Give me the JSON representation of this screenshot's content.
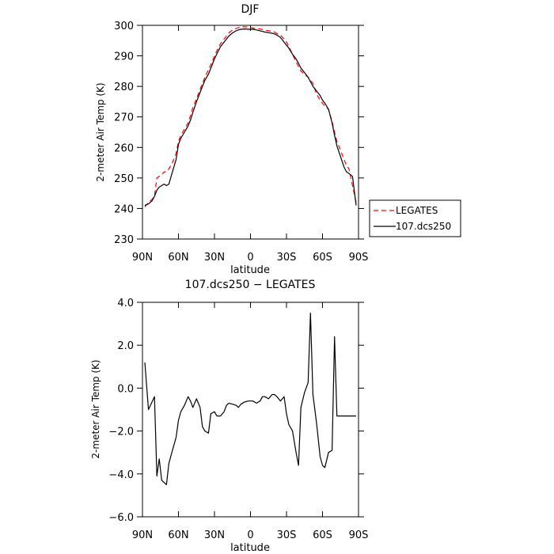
{
  "chart_data": [
    {
      "type": "line",
      "title": "DJF",
      "xlabel": "latitude",
      "ylabel": "2-meter Air Temp (K)",
      "xlim": [
        90,
        -90
      ],
      "ylim": [
        230,
        300
      ],
      "x_ticks": [
        90,
        60,
        30,
        0,
        -30,
        -60,
        -90
      ],
      "x_tick_labels": [
        "90N",
        "60N",
        "30N",
        "0",
        "30S",
        "60S",
        "90S"
      ],
      "y_ticks": [
        230,
        240,
        250,
        260,
        270,
        280,
        290,
        300
      ],
      "y_tick_labels": [
        "230",
        "240",
        "250",
        "260",
        "270",
        "280",
        "290",
        "300"
      ],
      "grid": false,
      "legend": {
        "placement": "outside-right",
        "entries": [
          {
            "label": "LEGATES",
            "color": "#ff0000",
            "dash": "dashed"
          },
          {
            "label": "107.dcs250",
            "color": "#000000",
            "dash": "solid"
          }
        ]
      },
      "series": [
        {
          "name": "LEGATES",
          "color": "#ff0000",
          "dash": "dashed",
          "x": [
            88,
            85,
            82,
            80,
            78,
            76,
            74,
            72,
            70,
            68,
            65,
            62,
            60,
            58,
            55,
            52,
            50,
            48,
            45,
            42,
            40,
            38,
            35,
            32,
            30,
            27,
            25,
            22,
            20,
            18,
            15,
            12,
            10,
            8,
            5,
            2,
            0,
            -2,
            -5,
            -8,
            -10,
            -12,
            -15,
            -18,
            -20,
            -22,
            -25,
            -28,
            -30,
            -32,
            -35,
            -38,
            -40,
            -42,
            -45,
            -48,
            -50,
            -52,
            -55,
            -58,
            -60,
            -62,
            -65,
            -68,
            -70,
            -72,
            -75,
            -78,
            -80,
            -82,
            -85,
            -88
          ],
          "y": [
            240.5,
            242.0,
            243.0,
            244.0,
            250.0,
            250.5,
            251.0,
            252.0,
            252.0,
            253.0,
            255.0,
            258.0,
            262.0,
            264.0,
            266.0,
            268.0,
            270.5,
            273.0,
            276.0,
            279.0,
            281.0,
            283.0,
            285.5,
            288.0,
            290.0,
            292.5,
            294.0,
            295.5,
            296.5,
            297.5,
            298.5,
            299.0,
            299.2,
            299.5,
            299.5,
            299.4,
            299.3,
            299.1,
            299.0,
            298.8,
            298.6,
            298.4,
            298.2,
            298.0,
            297.8,
            297.3,
            296.8,
            295.5,
            294.5,
            293.0,
            290.5,
            288.0,
            286.5,
            285.0,
            284.0,
            283.0,
            282.0,
            281.0,
            277.5,
            275.5,
            274.5,
            273.5,
            272.5,
            268.5,
            265.0,
            262.0,
            259.0,
            256.0,
            254.0,
            253.0,
            247.5,
            242.0
          ]
        },
        {
          "name": "107.dcs250",
          "color": "#000000",
          "dash": "solid",
          "x": [
            88,
            85,
            82,
            80,
            78,
            76,
            74,
            72,
            70,
            68,
            65,
            62,
            60,
            58,
            55,
            52,
            50,
            48,
            45,
            42,
            40,
            38,
            35,
            32,
            30,
            27,
            25,
            22,
            20,
            18,
            15,
            12,
            10,
            8,
            5,
            2,
            0,
            -2,
            -5,
            -8,
            -10,
            -12,
            -15,
            -18,
            -20,
            -22,
            -25,
            -28,
            -30,
            -32,
            -35,
            -38,
            -40,
            -42,
            -45,
            -48,
            -50,
            -52,
            -55,
            -58,
            -60,
            -62,
            -65,
            -68,
            -70,
            -72,
            -75,
            -78,
            -80,
            -82,
            -85,
            -88
          ],
          "y": [
            241.0,
            241.5,
            242.5,
            244.0,
            246.0,
            247.0,
            247.5,
            248.0,
            247.5,
            248.0,
            252.0,
            256.0,
            261.0,
            263.0,
            265.0,
            267.0,
            269.0,
            271.5,
            275.0,
            278.0,
            280.0,
            282.0,
            284.0,
            287.0,
            289.0,
            291.5,
            293.0,
            294.5,
            295.5,
            296.5,
            297.5,
            298.2,
            298.5,
            298.7,
            298.8,
            298.7,
            298.7,
            298.7,
            298.5,
            298.2,
            298.0,
            297.8,
            297.6,
            297.4,
            297.2,
            296.8,
            296.0,
            294.5,
            293.5,
            292.5,
            290.5,
            289.0,
            287.5,
            286.0,
            284.5,
            283.0,
            281.5,
            280.0,
            278.5,
            277.0,
            275.5,
            274.5,
            272.5,
            268.0,
            264.0,
            260.5,
            257.0,
            253.5,
            252.0,
            251.5,
            250.5,
            241.0
          ]
        }
      ]
    },
    {
      "type": "line",
      "title": "107.dcs250 − LEGATES",
      "xlabel": "latitude",
      "ylabel": "2-meter Air Temp (K)",
      "xlim": [
        90,
        -90
      ],
      "ylim": [
        -6,
        4
      ],
      "x_ticks": [
        90,
        60,
        30,
        0,
        -30,
        -60,
        -90
      ],
      "x_tick_labels": [
        "90N",
        "60N",
        "30N",
        "0",
        "30S",
        "60S",
        "90S"
      ],
      "y_ticks": [
        -6,
        -4,
        -2,
        0,
        2,
        4
      ],
      "y_tick_labels": [
        "−6.0",
        "−4.0",
        "−2.0",
        "0.0",
        "2.0",
        "4.0"
      ],
      "grid": false,
      "series": [
        {
          "color": "#000000",
          "dash": "solid",
          "x": [
            88,
            85,
            80,
            78,
            76,
            74,
            72,
            70,
            68,
            65,
            62,
            60,
            58,
            55,
            52,
            50,
            48,
            45,
            42,
            40,
            38,
            35,
            33,
            30,
            28,
            25,
            22,
            20,
            18,
            15,
            12,
            10,
            8,
            5,
            2,
            0,
            -2,
            -5,
            -8,
            -10,
            -12,
            -15,
            -18,
            -20,
            -22,
            -25,
            -28,
            -30,
            -32,
            -35,
            -38,
            -40,
            -42,
            -45,
            -48,
            -50,
            -52,
            -55,
            -58,
            -60,
            -62,
            -65,
            -68,
            -70,
            -72,
            -75,
            -78,
            -80,
            -82,
            -85,
            -88
          ],
          "y": [
            1.2,
            -1.0,
            -0.4,
            -4.1,
            -3.3,
            -4.3,
            -4.4,
            -4.5,
            -3.5,
            -2.9,
            -2.3,
            -1.5,
            -1.1,
            -0.8,
            -0.4,
            -0.6,
            -0.9,
            -0.5,
            -0.9,
            -1.8,
            -2.0,
            -2.1,
            -1.2,
            -1.1,
            -1.3,
            -1.3,
            -1.1,
            -0.8,
            -0.7,
            -0.75,
            -0.8,
            -0.9,
            -0.75,
            -0.65,
            -0.6,
            -0.6,
            -0.6,
            -0.7,
            -0.6,
            -0.4,
            -0.4,
            -0.5,
            -0.3,
            -0.3,
            -0.4,
            -0.6,
            -0.4,
            -1.2,
            -1.7,
            -2.0,
            -3.0,
            -3.6,
            -0.9,
            -0.2,
            0.25,
            3.5,
            -0.3,
            -1.6,
            -3.2,
            -3.6,
            -3.7,
            -3.0,
            -2.9,
            2.4,
            -1.3,
            -1.3,
            -1.3,
            -1.3,
            -1.3,
            -1.3,
            -1.3
          ]
        }
      ]
    }
  ]
}
